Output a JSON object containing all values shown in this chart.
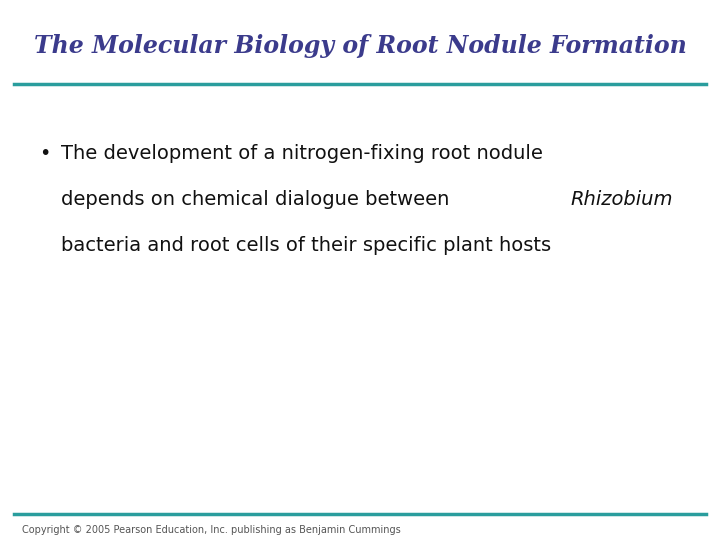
{
  "title": "The Molecular Biology of Root Nodule Formation",
  "title_color": "#3b3b8c",
  "title_fontsize": 17,
  "title_style": "italic",
  "title_weight": "bold",
  "title_font": "serif",
  "line_color": "#2a9d9d",
  "line_thickness": 2.5,
  "bullet_char": "•",
  "bullet_text_line1": "The development of a nitrogen-fixing root nodule",
  "bullet_text_line2_pre": "depends on chemical dialogue between ",
  "bullet_italic_word": "Rhizobium",
  "bullet_text_line3": "bacteria and root cells of their specific plant hosts",
  "bullet_fontsize": 14,
  "bullet_color": "#111111",
  "bullet_font": "sans-serif",
  "copyright_text": "Copyright © 2005 Pearson Education, Inc. publishing as Benjamin Cummings",
  "copyright_fontsize": 7,
  "copyright_color": "#555555",
  "background_color": "#ffffff"
}
